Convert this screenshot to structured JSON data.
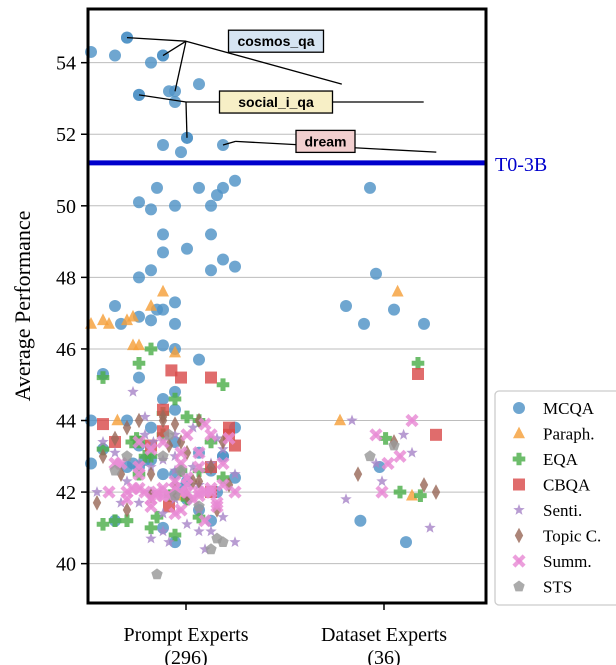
{
  "chart_data": {
    "type": "scatter",
    "ylabel": "Average Performance",
    "ylim": [
      38.9,
      55.5
    ],
    "yticks": [
      40,
      42,
      44,
      46,
      48,
      50,
      52,
      54
    ],
    "grid": true,
    "legend_placement": "right",
    "categories": [
      {
        "label": "Prompt Experts",
        "count": "(296)"
      },
      {
        "label": "Dataset Experts",
        "count": "(36)"
      }
    ],
    "reference_line": {
      "label": "T0-3B",
      "value": 51.2,
      "color": "#0000cc"
    },
    "annotations": [
      {
        "text": "cosmos_qa",
        "bg": "#d6e4f2",
        "anchor_y": 54.6,
        "anchor_x": 1.0,
        "targets": [
          [
            0.1,
            54.7
          ],
          [
            0.4,
            54.2
          ],
          [
            0.5,
            53.2
          ],
          [
            1.8,
            53.4
          ]
        ]
      },
      {
        "text": "social_i_qa",
        "bg": "#f7efc6",
        "anchor_y": 52.9,
        "anchor_x": 1.0,
        "targets": [
          [
            0.2,
            53.1
          ],
          [
            0.6,
            51.9
          ],
          [
            2.45,
            52.9
          ]
        ]
      },
      {
        "text": "dream",
        "bg": "#f2cfcf",
        "anchor_y": 51.8,
        "anchor_x": 1.45,
        "targets": [
          [
            0.9,
            51.7
          ],
          [
            2.55,
            51.5
          ]
        ]
      }
    ],
    "series": [
      {
        "name": "MCQA",
        "marker": "circle",
        "color": "#4f93c6"
      },
      {
        "name": "Paraph.",
        "marker": "triangle",
        "color": "#f5a03a"
      },
      {
        "name": "EQA",
        "marker": "plus",
        "color": "#4daf4a"
      },
      {
        "name": "CBQA",
        "marker": "square",
        "color": "#d94c4c"
      },
      {
        "name": "Senti.",
        "marker": "star",
        "color": "#a886c8"
      },
      {
        "name": "Topic C.",
        "marker": "diamond",
        "color": "#9a6a5a"
      },
      {
        "name": "Summ.",
        "marker": "x",
        "color": "#e88ad4"
      },
      {
        "name": "STS",
        "marker": "pentagon",
        "color": "#999999"
      }
    ],
    "points": [
      [
        0,
        -0.2,
        54.3
      ],
      [
        0,
        0.1,
        54.7
      ],
      [
        0,
        0.4,
        54.2
      ],
      [
        0,
        0.5,
        53.2
      ],
      [
        0,
        0.2,
        53.1
      ],
      [
        0,
        0.6,
        51.9
      ],
      [
        0,
        0.9,
        51.7
      ],
      [
        0,
        0.2,
        50.1
      ],
      [
        0,
        0.5,
        50.0
      ],
      [
        0,
        0.7,
        50.5
      ],
      [
        0,
        0.3,
        49.9
      ],
      [
        0,
        0.4,
        49.2
      ],
      [
        0,
        0.8,
        50.0
      ],
      [
        0,
        0.9,
        50.5
      ],
      [
        0,
        0.85,
        50.3
      ],
      [
        0,
        1.0,
        50.7
      ],
      [
        0,
        0.4,
        48.7
      ],
      [
        0,
        0.6,
        48.8
      ],
      [
        0,
        0.8,
        49.2
      ],
      [
        0,
        0.9,
        48.5
      ],
      [
        0,
        0.3,
        48.2
      ],
      [
        0,
        0.8,
        48.2
      ],
      [
        0,
        1.0,
        48.3
      ],
      [
        0,
        0.5,
        47.3
      ],
      [
        0,
        0.2,
        46.9
      ],
      [
        0,
        0.3,
        46.8
      ],
      [
        0,
        0.35,
        47.1
      ],
      [
        0,
        0.4,
        46.1
      ],
      [
        0,
        0.5,
        46.0
      ],
      [
        0,
        0.7,
        45.7
      ],
      [
        0,
        0.5,
        44.8
      ],
      [
        0,
        -0.1,
        45.3
      ],
      [
        0,
        0.2,
        45.2
      ],
      [
        0,
        0.4,
        44.6
      ],
      [
        0,
        0.5,
        44.3
      ],
      [
        0,
        -0.2,
        44.0
      ],
      [
        0,
        0.1,
        44.0
      ],
      [
        0,
        0.3,
        43.8
      ],
      [
        0,
        0.5,
        43.4
      ],
      [
        0,
        0.7,
        43.1
      ],
      [
        0,
        1.0,
        43.8
      ],
      [
        0,
        0.2,
        43.3
      ],
      [
        0,
        0.3,
        42.9
      ],
      [
        0,
        0.4,
        42.5
      ],
      [
        0,
        0.6,
        42.3
      ],
      [
        0,
        0.8,
        42.6
      ],
      [
        0,
        0.9,
        43.0
      ],
      [
        0,
        -0.2,
        42.8
      ],
      [
        0,
        -0.1,
        43.2
      ],
      [
        0,
        0.1,
        42.7
      ],
      [
        0,
        0.5,
        42.5
      ],
      [
        0,
        0.7,
        41.5
      ],
      [
        0,
        1.0,
        42.4
      ],
      [
        0,
        0.4,
        41.0
      ],
      [
        0,
        0.6,
        41.8
      ],
      [
        0,
        0.8,
        41.2
      ],
      [
        0,
        0.9,
        43.0
      ],
      [
        0,
        0.25,
        42.9
      ],
      [
        0,
        0.55,
        42.1
      ],
      [
        0,
        0.85,
        42.0
      ],
      [
        1,
        0.0,
        54.2
      ],
      [
        1,
        0.1,
        54.7
      ],
      [
        1,
        0.4,
        54.2
      ],
      [
        1,
        0.3,
        54.0
      ],
      [
        1,
        0.7,
        53.4
      ],
      [
        1,
        0.45,
        53.2
      ],
      [
        1,
        0.2,
        53.1
      ],
      [
        1,
        0.5,
        52.9
      ],
      [
        1,
        0.55,
        51.5
      ],
      [
        1,
        0.6,
        51.9
      ],
      [
        1,
        0.4,
        51.7
      ],
      [
        1,
        0.35,
        50.5
      ],
      [
        1,
        0.0,
        47.2
      ],
      [
        1,
        0.2,
        48.0
      ],
      [
        1,
        0.05,
        46.7
      ],
      [
        1,
        0.4,
        47.1
      ],
      [
        1,
        0.5,
        46.7
      ],
      [
        1,
        0.2,
        42.7
      ],
      [
        1,
        0.15,
        42.8
      ],
      [
        1,
        0.0,
        41.2
      ],
      [
        1,
        0.5,
        40.6
      ],
      [
        2,
        -0.2,
        46.7
      ],
      [
        2,
        -0.1,
        46.8
      ],
      [
        2,
        0.1,
        46.8
      ],
      [
        2,
        0.3,
        47.2
      ],
      [
        2,
        0.2,
        46.1
      ],
      [
        2,
        0.15,
        46.1
      ],
      [
        2,
        0.5,
        45.9
      ],
      [
        2,
        0.15,
        46.9
      ],
      [
        2,
        -0.05,
        46.7
      ],
      [
        2,
        0.02,
        44.0
      ],
      [
        2,
        0.4,
        47.6
      ],
      [
        2,
        0.55,
        41.9
      ],
      [
        3,
        -0.1,
        45.2
      ],
      [
        3,
        0.3,
        46.0
      ],
      [
        3,
        0.5,
        44.6
      ],
      [
        3,
        0.4,
        44.2
      ],
      [
        3,
        0.6,
        44.1
      ],
      [
        3,
        0.7,
        44.0
      ],
      [
        3,
        0.9,
        45.0
      ],
      [
        3,
        0.3,
        43.0
      ],
      [
        3,
        0.55,
        42.6
      ],
      [
        3,
        0.2,
        42.5
      ],
      [
        3,
        0.5,
        42.0
      ],
      [
        3,
        0.6,
        41.8
      ],
      [
        3,
        0.7,
        41.3
      ],
      [
        3,
        0.35,
        41.3
      ],
      [
        3,
        0.1,
        41.2
      ],
      [
        3,
        -0.1,
        41.1
      ],
      [
        3,
        0.0,
        41.2
      ],
      [
        3,
        0.3,
        41.0
      ],
      [
        3,
        0.5,
        40.8
      ],
      [
        3,
        0.8,
        43.4
      ],
      [
        3,
        0.7,
        42.6
      ],
      [
        3,
        0.9,
        42.4
      ],
      [
        3,
        0.2,
        43.4
      ],
      [
        3,
        -0.1,
        43.2
      ],
      [
        3,
        0.4,
        43.6
      ],
      [
        3,
        0.25,
        43.0
      ],
      [
        3,
        0.2,
        45.6
      ],
      [
        3,
        0.18,
        43.5
      ],
      [
        3,
        0.14,
        43.4
      ],
      [
        3,
        0.46,
        41.9
      ],
      [
        4,
        -0.1,
        43.9
      ],
      [
        4,
        0.0,
        43.4
      ],
      [
        4,
        0.4,
        44.3
      ],
      [
        4,
        0.55,
        45.2
      ],
      [
        4,
        0.8,
        45.2
      ],
      [
        4,
        0.3,
        43.3
      ],
      [
        4,
        0.95,
        43.6
      ],
      [
        4,
        0.8,
        42.0
      ],
      [
        4,
        1.0,
        43.3
      ],
      [
        4,
        0.45,
        41.6
      ],
      [
        4,
        0.95,
        43.8
      ],
      [
        4,
        0.8,
        42.7
      ],
      [
        4,
        0.47,
        45.4
      ],
      [
        4,
        0.4,
        43.7
      ],
      [
        5,
        -0.1,
        43.4
      ],
      [
        5,
        0.0,
        43.1
      ],
      [
        5,
        0.2,
        42.8
      ],
      [
        5,
        0.3,
        43.2
      ],
      [
        5,
        0.4,
        42.9
      ],
      [
        5,
        0.5,
        42.6
      ],
      [
        5,
        0.6,
        42.4
      ],
      [
        5,
        0.7,
        42.2
      ],
      [
        5,
        0.8,
        42.8
      ],
      [
        5,
        0.9,
        43.2
      ],
      [
        5,
        1.0,
        42.5
      ],
      [
        5,
        0.1,
        42.3
      ],
      [
        5,
        0.3,
        42.0
      ],
      [
        5,
        0.5,
        41.8
      ],
      [
        5,
        0.7,
        41.5
      ],
      [
        5,
        0.9,
        41.3
      ],
      [
        5,
        0.2,
        41.7
      ],
      [
        5,
        0.4,
        41.4
      ],
      [
        5,
        0.6,
        41.1
      ],
      [
        5,
        0.8,
        40.9
      ],
      [
        5,
        1.0,
        40.6
      ],
      [
        5,
        0.3,
        40.7
      ],
      [
        5,
        0.5,
        41.9
      ],
      [
        5,
        -0.15,
        42.0
      ],
      [
        5,
        0.15,
        44.8
      ],
      [
        5,
        0.65,
        43.8
      ],
      [
        5,
        0.85,
        43.5
      ],
      [
        5,
        0.45,
        40.6
      ],
      [
        5,
        0.75,
        40.4
      ],
      [
        5,
        0.25,
        44.1
      ],
      [
        5,
        0.25,
        43.6
      ],
      [
        5,
        0.05,
        41.7
      ],
      [
        5,
        0.32,
        43.4
      ],
      [
        5,
        0.3,
        42.7
      ],
      [
        5,
        0.5,
        43.6
      ],
      [
        5,
        0.65,
        42.7
      ],
      [
        5,
        0.4,
        40.9
      ],
      [
        5,
        0.7,
        40.9
      ],
      [
        5,
        0.5,
        43.0
      ],
      [
        6,
        -0.1,
        43.0
      ],
      [
        6,
        0.0,
        43.5
      ],
      [
        6,
        0.1,
        43.8
      ],
      [
        6,
        0.2,
        44.0
      ],
      [
        6,
        0.4,
        44.1
      ],
      [
        6,
        0.5,
        43.9
      ],
      [
        6,
        0.7,
        44.0
      ],
      [
        6,
        0.9,
        43.4
      ],
      [
        6,
        0.6,
        43.1
      ],
      [
        6,
        0.8,
        42.7
      ],
      [
        6,
        0.3,
        42.5
      ],
      [
        6,
        0.5,
        42.2
      ],
      [
        6,
        0.3,
        41.9
      ],
      [
        6,
        0.6,
        41.9
      ],
      [
        6,
        0.85,
        41.5
      ],
      [
        6,
        -0.15,
        41.7
      ],
      [
        6,
        0.1,
        41.5
      ],
      [
        6,
        0.45,
        43.3
      ],
      [
        6,
        0.7,
        42.3
      ],
      [
        6,
        0.05,
        42.5
      ],
      [
        6,
        0.5,
        42.0
      ],
      [
        6,
        0.65,
        42.3
      ],
      [
        6,
        0.95,
        42.2
      ],
      [
        6,
        0.4,
        44.0
      ],
      [
        6,
        0.55,
        43.4
      ],
      [
        7,
        -0.05,
        42.0
      ],
      [
        7,
        0.05,
        42.8
      ],
      [
        7,
        0.2,
        43.4
      ],
      [
        7,
        0.4,
        43.4
      ],
      [
        7,
        0.3,
        43.2
      ],
      [
        7,
        0.55,
        42.8
      ],
      [
        7,
        0.7,
        43.1
      ],
      [
        7,
        0.8,
        43.6
      ],
      [
        7,
        0.95,
        43.5
      ],
      [
        7,
        0.7,
        42.7
      ],
      [
        7,
        0.9,
        42.8
      ],
      [
        7,
        0.1,
        41.8
      ],
      [
        7,
        0.35,
        41.9
      ],
      [
        7,
        0.55,
        41.5
      ],
      [
        7,
        0.75,
        41.2
      ],
      [
        7,
        0.2,
        42.5
      ],
      [
        7,
        0.6,
        42.4
      ],
      [
        7,
        1.0,
        42.0
      ],
      [
        7,
        0.55,
        43.1
      ],
      [
        7,
        0.6,
        43.6
      ],
      [
        7,
        0.75,
        43.9
      ],
      [
        7,
        0.85,
        41.7
      ],
      [
        8,
        0.0,
        42.8
      ],
      [
        8,
        0.2,
        42.7
      ],
      [
        8,
        0.1,
        42.0
      ],
      [
        8,
        0.3,
        41.8
      ],
      [
        8,
        0.4,
        42.1
      ],
      [
        8,
        0.5,
        42.3
      ],
      [
        8,
        0.6,
        42.0
      ],
      [
        8,
        0.7,
        41.9
      ],
      [
        8,
        0.8,
        42.1
      ],
      [
        8,
        0.9,
        42.2
      ],
      [
        8,
        0.3,
        41.6
      ],
      [
        8,
        0.5,
        41.4
      ],
      [
        8,
        0.55,
        42.0
      ],
      [
        8,
        0.2,
        42.1
      ],
      [
        8,
        0.45,
        41.9
      ],
      [
        8,
        0.65,
        41.8
      ],
      [
        8,
        0.35,
        42.0
      ],
      [
        8,
        0.75,
        42.0
      ],
      [
        8,
        0.85,
        41.6
      ],
      [
        8,
        0.4,
        41.9
      ],
      [
        8,
        0.25,
        42.0
      ],
      [
        8,
        0.15,
        42.1
      ],
      [
        8,
        0.5,
        42.1
      ],
      [
        8,
        0.6,
        42.2
      ],
      [
        8,
        0.7,
        42.0
      ],
      [
        8,
        0.8,
        42.0
      ],
      [
        9,
        0.0,
        42.6
      ],
      [
        9,
        0.1,
        43.0
      ],
      [
        9,
        0.4,
        43.0
      ],
      [
        9,
        0.5,
        41.9
      ],
      [
        9,
        0.7,
        41.6
      ],
      [
        9,
        0.8,
        40.4
      ],
      [
        9,
        0.9,
        40.6
      ],
      [
        9,
        0.55,
        42.6
      ],
      [
        9,
        0.45,
        43.6
      ],
      [
        9,
        0.35,
        39.7
      ],
      [
        9,
        0.85,
        40.7
      ]
    ],
    "dataset_points": [
      [
        "MCQA",
        0.3,
        47.2
      ],
      [
        "MCQA",
        0.55,
        48.1
      ],
      [
        "MCQA",
        0.45,
        46.7
      ],
      [
        "MCQA",
        0.7,
        47.1
      ],
      [
        "MCQA",
        0.95,
        46.7
      ],
      [
        "MCQA",
        0.5,
        50.5
      ],
      [
        "MCQA",
        0.58,
        42.7
      ],
      [
        "MCQA",
        0.42,
        41.2
      ],
      [
        "MCQA",
        0.8,
        40.6
      ],
      [
        "Paraph.",
        0.25,
        44.0
      ],
      [
        "Paraph.",
        0.73,
        47.6
      ],
      [
        "Paraph.",
        0.85,
        41.9
      ],
      [
        "EQA",
        0.63,
        43.5
      ],
      [
        "EQA",
        0.9,
        45.6
      ],
      [
        "EQA",
        0.75,
        42.0
      ],
      [
        "EQA",
        0.92,
        41.9
      ],
      [
        "CBQA",
        0.9,
        45.3
      ],
      [
        "CBQA",
        1.05,
        43.6
      ],
      [
        "Senti.",
        0.35,
        44.0
      ],
      [
        "Senti.",
        0.55,
        42.8
      ],
      [
        "Senti.",
        0.6,
        42.3
      ],
      [
        "Senti.",
        0.78,
        43.6
      ],
      [
        "Senti.",
        1.0,
        41.0
      ],
      [
        "Senti.",
        0.85,
        43.1
      ],
      [
        "Senti.",
        0.3,
        41.8
      ],
      [
        "Topic C.",
        0.4,
        42.5
      ],
      [
        "Topic C.",
        0.7,
        43.4
      ],
      [
        "Topic C.",
        1.05,
        42.0
      ],
      [
        "Topic C.",
        0.95,
        42.2
      ],
      [
        "Summ.",
        0.55,
        43.6
      ],
      [
        "Summ.",
        0.65,
        42.8
      ],
      [
        "Summ.",
        0.6,
        42.0
      ],
      [
        "Summ.",
        0.85,
        44.0
      ],
      [
        "Summ.",
        0.75,
        43.0
      ],
      [
        "STS",
        0.5,
        43.0
      ],
      [
        "STS",
        0.7,
        43.3
      ]
    ]
  }
}
